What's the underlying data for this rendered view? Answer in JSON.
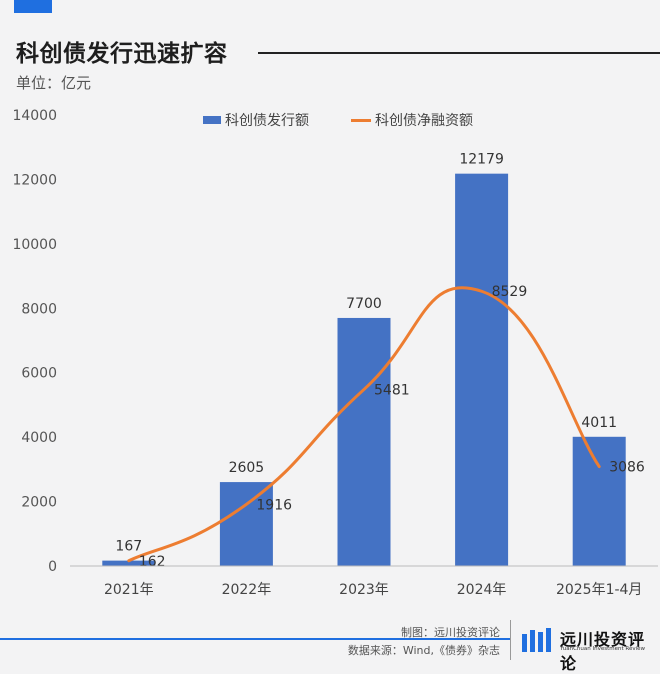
{
  "header": {
    "title": "科创债发行迅速扩容",
    "unit": "单位：亿元"
  },
  "colors": {
    "bar": "#4472c4",
    "line": "#ed7d31",
    "accent": "#1f6fe0"
  },
  "chart_data": {
    "type": "bar",
    "categories": [
      "2021年",
      "2022年",
      "2023年",
      "2024年",
      "2025年1-4月"
    ],
    "series": [
      {
        "name": "科创债发行额",
        "type": "bar",
        "values": [
          167,
          2605,
          7700,
          12179,
          4011
        ]
      },
      {
        "name": "科创债净融资额",
        "type": "line",
        "values": [
          162,
          1916,
          5481,
          8529,
          3086
        ]
      }
    ],
    "ylim": [
      0,
      14000
    ],
    "yticks": [
      0,
      2000,
      4000,
      6000,
      8000,
      10000,
      12000,
      14000
    ],
    "grid": false,
    "legend_position": "top"
  },
  "footer": {
    "credit": "制图：远川投资评论",
    "source": "数据来源：Wind,《债券》杂志"
  },
  "logo": {
    "name_cn": "远川投资评论",
    "name_en": "YuanChuan Investment Review",
    "icon": "yuanchuan-logo-icon"
  }
}
